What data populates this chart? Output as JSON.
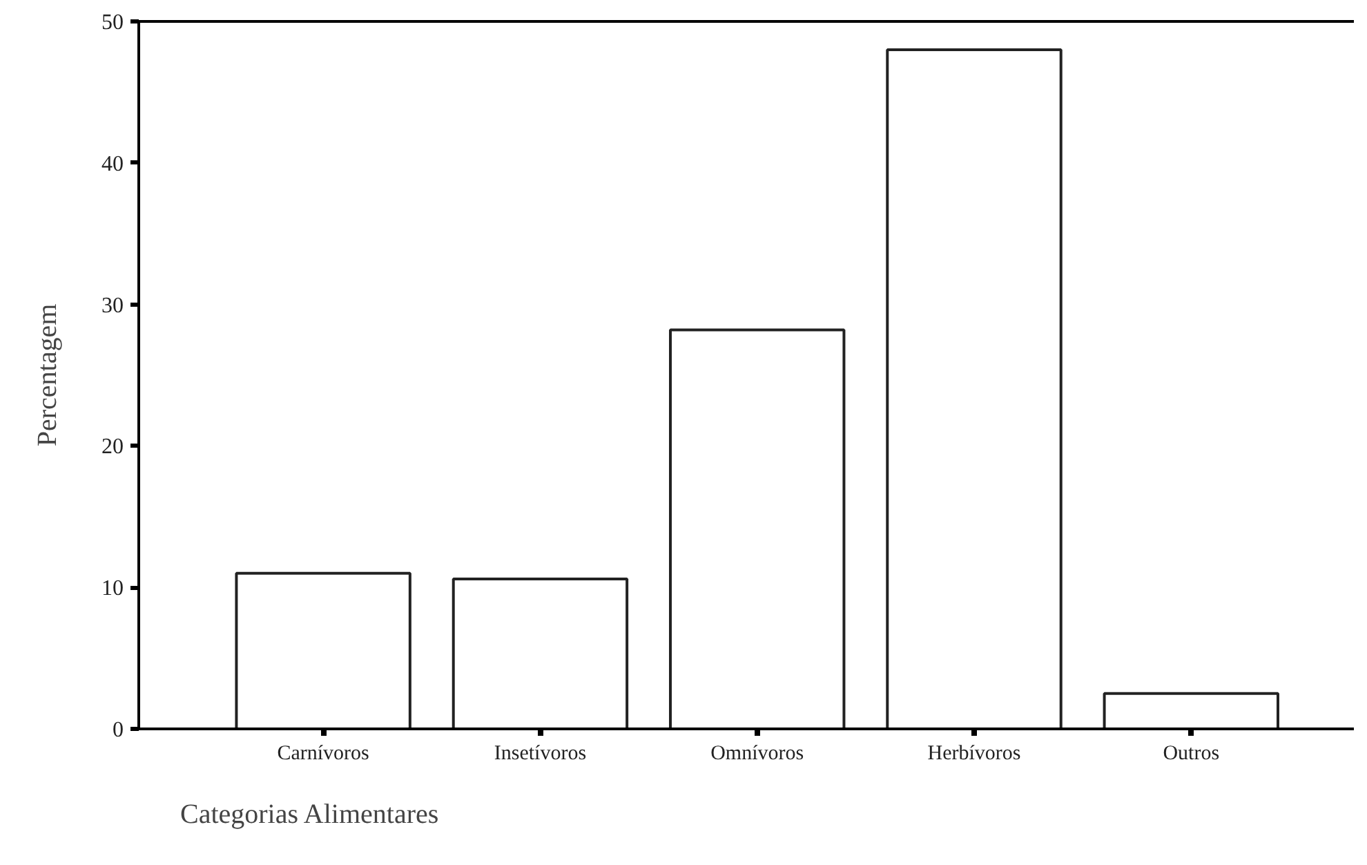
{
  "chart_data": {
    "type": "bar",
    "xlabel": "Categorias Alimentares",
    "ylabel": "Percentagem",
    "categories": [
      "Carnívoros",
      "Insetívoros",
      "Omnívoros",
      "Herbívoros",
      "Outros"
    ],
    "values": [
      11,
      10.6,
      28.2,
      48,
      2.5
    ],
    "color": "#ffffff",
    "ylim": [
      0,
      50
    ],
    "yticks": [
      0,
      10,
      20,
      30,
      40,
      50
    ],
    "grid": false
  }
}
